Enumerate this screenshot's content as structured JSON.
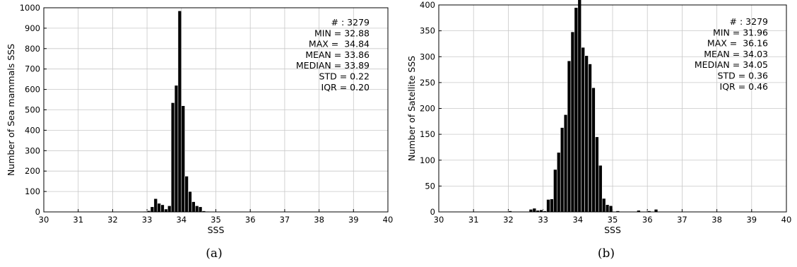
{
  "chart_data": [
    {
      "type": "bar",
      "panel_label": "(a)",
      "title": "",
      "xlabel": "SSS",
      "ylabel": "Number of Sea mammals SSS",
      "xlim": [
        30,
        40
      ],
      "ylim": [
        0,
        1000
      ],
      "xticks": [
        "30",
        "31",
        "32",
        "33",
        "34",
        "35",
        "36",
        "37",
        "38",
        "39",
        "40"
      ],
      "yticks": [
        "0",
        "100",
        "200",
        "300",
        "400",
        "500",
        "600",
        "700",
        "800",
        "900",
        "1000"
      ],
      "grid": true,
      "bin_width": 0.1,
      "x": [
        32.9,
        33.0,
        33.1,
        33.2,
        33.3,
        33.4,
        33.5,
        33.6,
        33.7,
        33.8,
        33.9,
        34.0,
        34.1,
        34.2,
        34.3,
        34.4,
        34.5,
        34.6,
        34.7
      ],
      "values": [
        3,
        6,
        25,
        65,
        42,
        35,
        14,
        30,
        535,
        620,
        985,
        520,
        175,
        100,
        50,
        30,
        25,
        5,
        3
      ],
      "stats": [
        "# : 3279",
        "MIN = 32.88",
        "MAX =  34.84",
        "MEAN = 33.86",
        "MEDIAN = 33.89",
        "STD = 0.22",
        "IQR = 0.20"
      ]
    },
    {
      "type": "bar",
      "panel_label": "(b)",
      "title": "",
      "xlabel": "SSS",
      "ylabel": "Number of Satellite SSS",
      "xlim": [
        30,
        40
      ],
      "ylim": [
        0,
        400
      ],
      "xticks": [
        "30",
        "31",
        "32",
        "33",
        "34",
        "35",
        "36",
        "37",
        "38",
        "39",
        "40"
      ],
      "yticks": [
        "0",
        "50",
        "100",
        "150",
        "200",
        "250",
        "300",
        "350",
        "400"
      ],
      "grid": true,
      "bin_width": 0.1,
      "x": [
        32.0,
        32.2,
        32.4,
        32.5,
        32.6,
        32.7,
        32.8,
        32.9,
        33.0,
        33.1,
        33.2,
        33.3,
        33.4,
        33.5,
        33.6,
        33.7,
        33.8,
        33.9,
        34.0,
        34.1,
        34.2,
        34.3,
        34.4,
        34.5,
        34.6,
        34.7,
        34.8,
        34.9,
        35.1,
        35.7,
        36.0,
        36.2
      ],
      "values": [
        2,
        1,
        1,
        1,
        5,
        7,
        3,
        4,
        2,
        24,
        25,
        82,
        115,
        163,
        188,
        292,
        348,
        395,
        422,
        318,
        302,
        286,
        240,
        145,
        90,
        26,
        14,
        12,
        2,
        3,
        2,
        5
      ],
      "stats": [
        "# : 3279",
        "MIN = 31.96",
        "MAX =  36.16",
        "MEAN = 34.03",
        "MEDIAN = 34.05",
        "STD = 0.36",
        "IQR = 0.46"
      ]
    }
  ]
}
